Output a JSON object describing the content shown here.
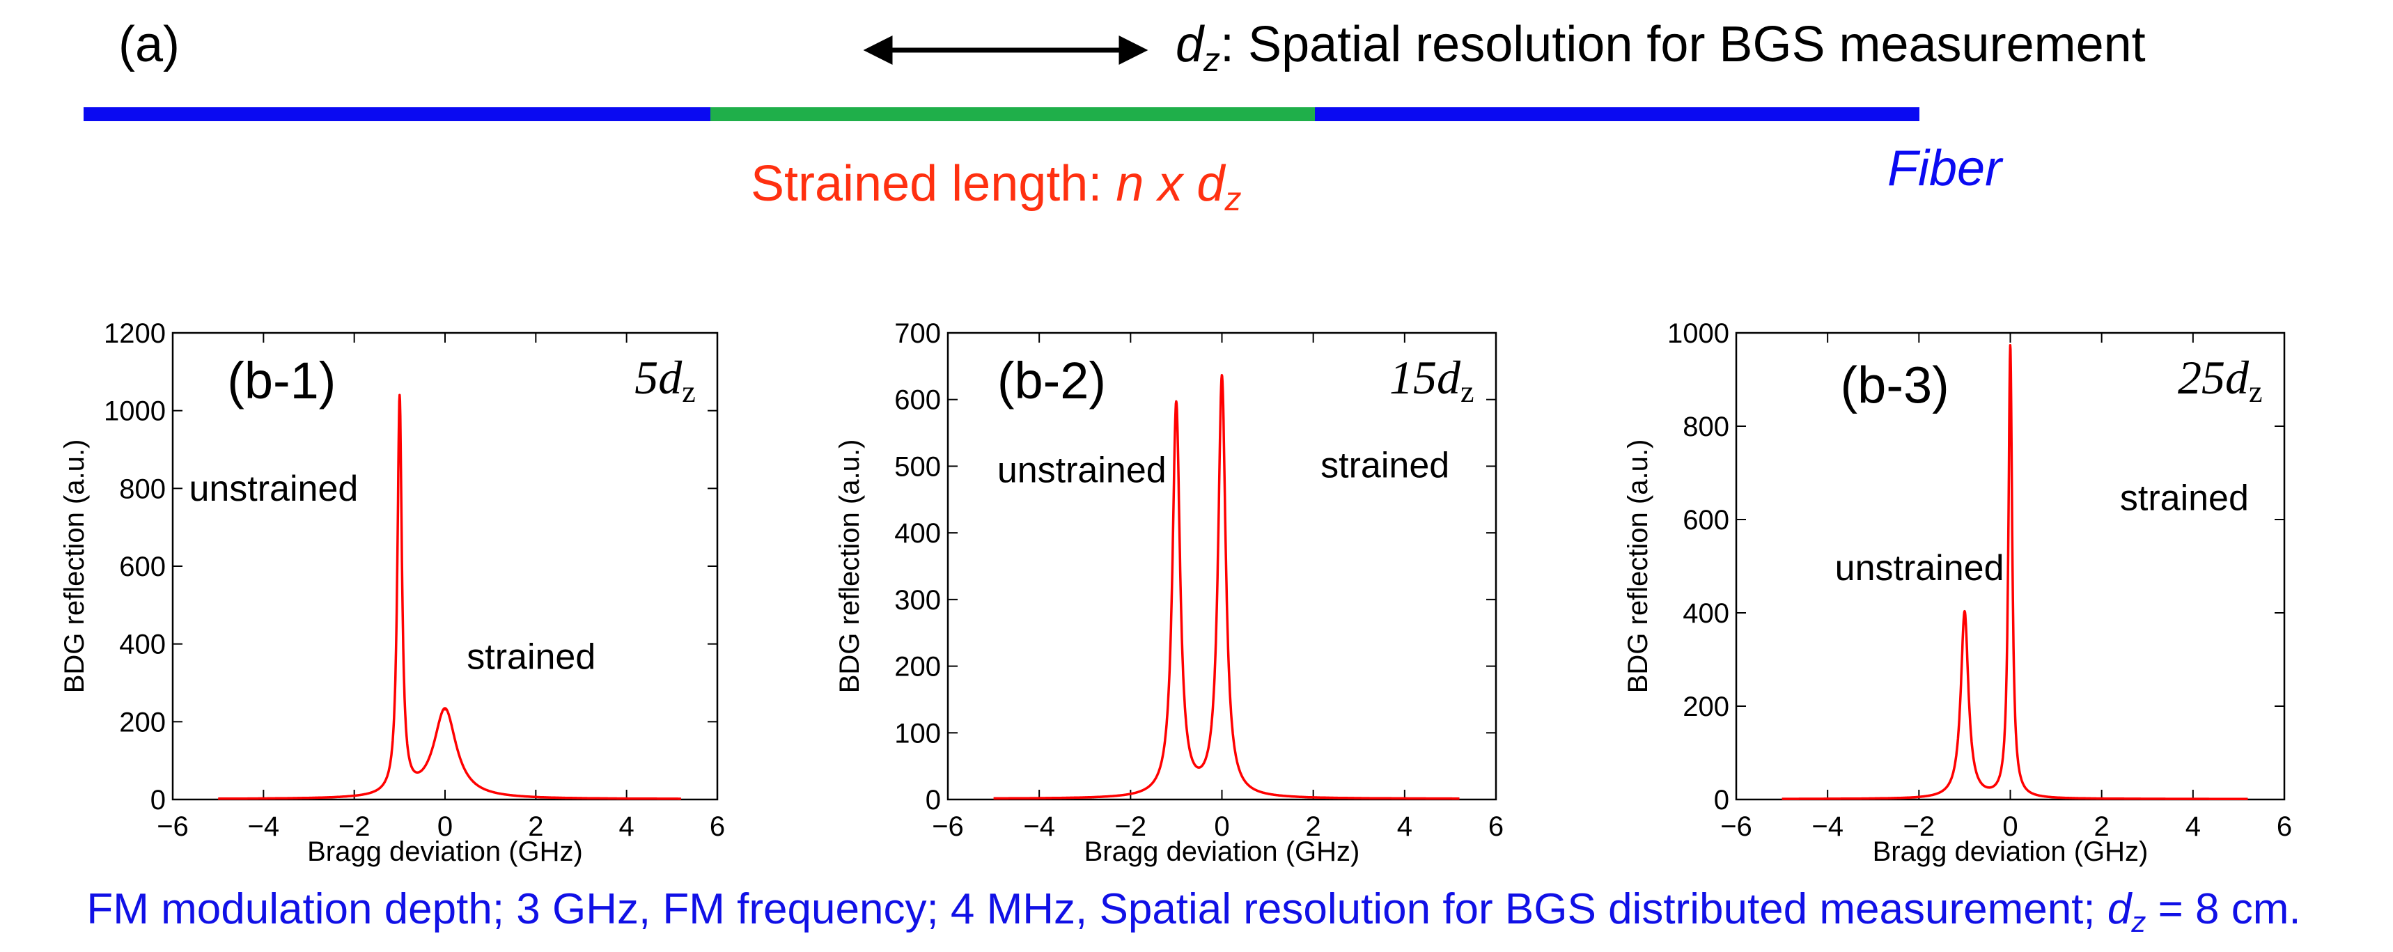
{
  "schematic": {
    "panel_label": "(a)",
    "resolution_symbol": "d",
    "resolution_subscript": "z",
    "resolution_text": ": Spatial resolution for BGS measurement",
    "strained_label": "Strained length: ",
    "strained_formula": "n x d",
    "strained_subscript": "z",
    "fiber_label": "Fiber"
  },
  "colors": {
    "fiber": "#0a0af2",
    "strained_section": "#1faf4a",
    "strained_text": "#ff3010",
    "trace": "#ff0000",
    "caption": "#1010e6",
    "arrow": "#000000"
  },
  "caption": {
    "text": "FM modulation depth; 3 GHz, FM frequency; 4 MHz, Spatial resolution for BGS distributed measurement; ",
    "symbol": "d",
    "subscript": "z",
    "suffix": " = 8 cm."
  },
  "chart_data": [
    {
      "type": "line",
      "panel": "(b-1)",
      "length_label": "5d",
      "length_subscript": "z",
      "xlabel": "Bragg deviation (GHz)",
      "ylabel": "BDG reflection (a.u.)",
      "xlim": [
        -6,
        6
      ],
      "ylim": [
        0,
        1200
      ],
      "xticks": [
        -6,
        -4,
        -2,
        0,
        2,
        4,
        6
      ],
      "yticks": [
        0,
        200,
        400,
        600,
        800,
        1000,
        1200
      ],
      "xtick_labels": [
        "−6",
        "−4",
        "−2",
        "0",
        "2",
        "4",
        "6"
      ],
      "ytick_labels": [
        "0",
        "200",
        "400",
        "600",
        "800",
        "1000",
        "1200"
      ],
      "x_range": [
        -5,
        5.2
      ],
      "peaks": [
        {
          "label": "unstrained",
          "center": -1.0,
          "amplitude": 1020,
          "width": 0.06
        },
        {
          "label": "strained",
          "center": 0.0,
          "amplitude": 230,
          "width": 0.3
        }
      ],
      "annotations": [
        "unstrained",
        "strained"
      ]
    },
    {
      "type": "line",
      "panel": "(b-2)",
      "length_label": "15d",
      "length_subscript": "z",
      "xlabel": "Bragg deviation (GHz)",
      "ylabel": "BDG reflection (a.u.)",
      "xlim": [
        -6,
        6
      ],
      "ylim": [
        0,
        700
      ],
      "xticks": [
        -6,
        -4,
        -2,
        0,
        2,
        4,
        6
      ],
      "yticks": [
        0,
        100,
        200,
        300,
        400,
        500,
        600,
        700
      ],
      "xtick_labels": [
        "−6",
        "−4",
        "−2",
        "0",
        "2",
        "4",
        "6"
      ],
      "ytick_labels": [
        "0",
        "100",
        "200",
        "300",
        "400",
        "500",
        "600",
        "700"
      ],
      "x_range": [
        -5,
        5.2
      ],
      "peaks": [
        {
          "label": "unstrained",
          "center": -1.0,
          "amplitude": 590,
          "width": 0.1
        },
        {
          "label": "strained",
          "center": 0.0,
          "amplitude": 630,
          "width": 0.1
        }
      ],
      "annotations": [
        "unstrained",
        "strained"
      ]
    },
    {
      "type": "line",
      "panel": "(b-3)",
      "length_label": "25d",
      "length_subscript": "z",
      "xlabel": "Bragg deviation (GHz)",
      "ylabel": "BDG reflection (a.u.)",
      "xlim": [
        -6,
        6
      ],
      "ylim": [
        0,
        1000
      ],
      "xticks": [
        -6,
        -4,
        -2,
        0,
        2,
        4,
        6
      ],
      "yticks": [
        0,
        200,
        400,
        600,
        800,
        1000
      ],
      "xtick_labels": [
        "−6",
        "−4",
        "−2",
        "0",
        "2",
        "4",
        "6"
      ],
      "ytick_labels": [
        "0",
        "200",
        "400",
        "600",
        "800",
        "1000"
      ],
      "x_range": [
        -5,
        5.2
      ],
      "peaks": [
        {
          "label": "unstrained",
          "center": -1.0,
          "amplitude": 400,
          "width": 0.1
        },
        {
          "label": "strained",
          "center": 0.0,
          "amplitude": 970,
          "width": 0.05
        }
      ],
      "annotations": [
        "unstrained",
        "strained"
      ]
    }
  ]
}
